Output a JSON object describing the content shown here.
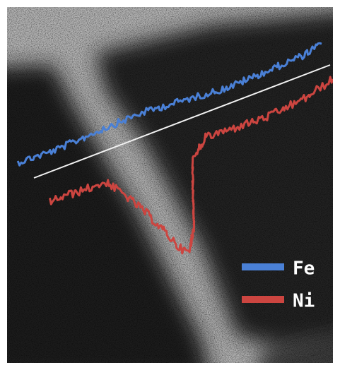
{
  "legend": [
    {
      "label": "Fe",
      "color": "#4a80d6"
    },
    {
      "label": "Ni",
      "color": "#cc4540"
    }
  ]
}
